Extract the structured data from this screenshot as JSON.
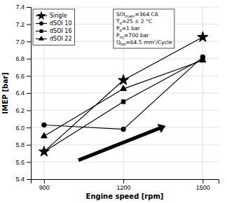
{
  "chart_data": {
    "type": "line",
    "xlabel": "Engine speed [rpm]",
    "ylabel": "IMEP [bar]",
    "x": [
      900,
      1200,
      1500
    ],
    "series": [
      {
        "name": "Single",
        "color": "#000000",
        "marker": "star",
        "values": [
          5.72,
          6.55,
          7.05
        ]
      },
      {
        "name": "dSOI 10",
        "color": "#000000",
        "marker": "circle",
        "values": [
          6.03,
          5.98,
          6.82
        ]
      },
      {
        "name": "dSOI 16",
        "color": "#000000",
        "marker": "square",
        "values": [
          5.72,
          6.3,
          6.8
        ]
      },
      {
        "name": "dSOI 22",
        "color": "#000000",
        "marker": "triangle",
        "values": [
          5.9,
          6.45,
          6.78
        ]
      }
    ],
    "xlim": [
      850,
      1560
    ],
    "ylim": [
      5.4,
      7.4
    ],
    "xticks": [
      900,
      1200,
      1500
    ],
    "yticks": [
      5.4,
      5.6,
      5.8,
      {
        "value": 6.0,
        "label": "6.0"
      },
      6.2,
      6.4,
      6.6,
      6.8,
      {
        "value": 7.0,
        "label": "7.0"
      },
      7.2,
      7.4
    ],
    "grid": true,
    "legend": "upper left",
    "annotation": [
      [
        "SOI",
        "main",
        "=364 CA"
      ],
      [
        "T",
        "o",
        "=25 ± 2 °C"
      ],
      [
        "P",
        "o",
        "=1 bar"
      ],
      [
        "P",
        "inj",
        "=700 bar"
      ],
      [
        "Q",
        "tot",
        "=64.5 mm²/Cycle"
      ]
    ],
    "arrows": [
      {
        "x": [
          1030,
          1360
        ],
        "y": [
          5.62,
          6.02
        ]
      }
    ]
  }
}
